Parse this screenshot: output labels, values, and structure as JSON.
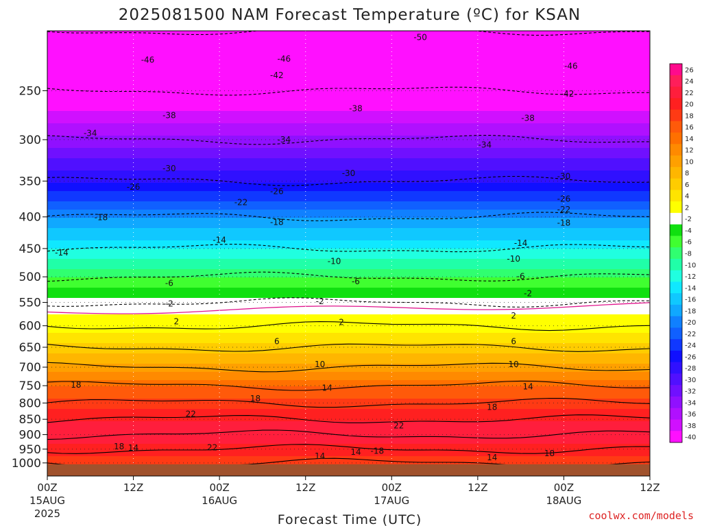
{
  "page": {
    "title": "2025081500 NAM Forecast Temperature (ºC) for KSAN",
    "xlabel": "Forecast Time (UTC)",
    "credit": "coolwx.com/models"
  },
  "chart_data": {
    "type": "heatmap",
    "title": "2025081500 NAM Forecast Temperature (ºC) for KSAN",
    "xlabel": "Forecast Time (UTC)",
    "ylabel": "",
    "y_scale": "log",
    "y_inverted": true,
    "ylim": [
      1050,
      200
    ],
    "xlim_hours": [
      0,
      84
    ],
    "y_ticks": [
      250,
      300,
      350,
      400,
      450,
      500,
      550,
      600,
      650,
      700,
      750,
      800,
      850,
      900,
      950,
      1000
    ],
    "x_ticks": [
      {
        "hour": 0,
        "label": "00Z",
        "date": "15AUG",
        "year": "2025"
      },
      {
        "hour": 12,
        "label": "12Z",
        "date": "",
        "year": ""
      },
      {
        "hour": 24,
        "label": "00Z",
        "date": "16AUG",
        "year": ""
      },
      {
        "hour": 36,
        "label": "12Z",
        "date": "",
        "year": ""
      },
      {
        "hour": 48,
        "label": "00Z",
        "date": "17AUG",
        "year": ""
      },
      {
        "hour": 60,
        "label": "12Z",
        "date": "",
        "year": ""
      },
      {
        "hour": 72,
        "label": "00Z",
        "date": "18AUG",
        "year": ""
      },
      {
        "hour": 84,
        "label": "12Z",
        "date": "",
        "year": ""
      }
    ],
    "colorbar_levels": [
      26,
      24,
      22,
      20,
      18,
      16,
      14,
      12,
      10,
      8,
      6,
      4,
      2,
      -2,
      -4,
      -6,
      -8,
      -10,
      -12,
      -14,
      -16,
      -18,
      -20,
      -22,
      -24,
      -26,
      -28,
      -30,
      -32,
      -34,
      -36,
      -38,
      -40
    ],
    "colorbar_colors": [
      "#ff0a8c",
      "#ff1e5a",
      "#ff1e3c",
      "#ff2020",
      "#ff3a14",
      "#ff5a0a",
      "#ff7000",
      "#ff8a00",
      "#ffa000",
      "#ffb600",
      "#ffcc00",
      "#ffe400",
      "#ffff00",
      "#ffffff",
      "#10e010",
      "#40ff30",
      "#30ff70",
      "#20ffa8",
      "#20ffe0",
      "#10e8ff",
      "#10c8ff",
      "#10a8ff",
      "#1080ff",
      "#1060ff",
      "#1038ff",
      "#1010ff",
      "#3010ff",
      "#5010ff",
      "#7010ff",
      "#9010ff",
      "#b010ff",
      "#d010ff",
      "#ff10ff"
    ],
    "temperature_profile": {
      "pressure_hPa": [
        1000,
        950,
        900,
        850,
        800,
        750,
        700,
        650,
        600,
        550,
        500,
        450,
        400,
        350,
        300,
        250,
        200
      ],
      "temperature_C": [
        18,
        20,
        22,
        21,
        18,
        15,
        10,
        6,
        2,
        -2,
        -7,
        -13,
        -19,
        -27,
        -34,
        -42,
        -49
      ]
    },
    "contour_labels": [
      {
        "value": "-46",
        "hour": 14,
        "p": 223
      },
      {
        "value": "-46",
        "hour": 33,
        "p": 222
      },
      {
        "value": "-50",
        "hour": 52,
        "p": 205
      },
      {
        "value": "-46",
        "hour": 73,
        "p": 228
      },
      {
        "value": "-42",
        "hour": 32,
        "p": 236
      },
      {
        "value": "-42",
        "hour": 72.5,
        "p": 253
      },
      {
        "value": "-38",
        "hour": 17,
        "p": 274
      },
      {
        "value": "-38",
        "hour": 43,
        "p": 267
      },
      {
        "value": "-38",
        "hour": 67,
        "p": 277
      },
      {
        "value": "-34",
        "hour": 6,
        "p": 293
      },
      {
        "value": "-34",
        "hour": 33,
        "p": 300
      },
      {
        "value": "-34",
        "hour": 61,
        "p": 306
      },
      {
        "value": "-30",
        "hour": 17,
        "p": 334
      },
      {
        "value": "-30",
        "hour": 42,
        "p": 340
      },
      {
        "value": "-30",
        "hour": 72,
        "p": 344
      },
      {
        "value": "-26",
        "hour": 12,
        "p": 358
      },
      {
        "value": "-26",
        "hour": 32,
        "p": 364
      },
      {
        "value": "-26",
        "hour": 72,
        "p": 374
      },
      {
        "value": "-22",
        "hour": 27,
        "p": 379
      },
      {
        "value": "-22",
        "hour": 72,
        "p": 389
      },
      {
        "value": "-18",
        "hour": 7.5,
        "p": 401
      },
      {
        "value": "-18",
        "hour": 32,
        "p": 408
      },
      {
        "value": "-18",
        "hour": 72,
        "p": 409
      },
      {
        "value": "-14",
        "hour": 2,
        "p": 457
      },
      {
        "value": "-14",
        "hour": 24,
        "p": 436
      },
      {
        "value": "-14",
        "hour": 66,
        "p": 441
      },
      {
        "value": "-10",
        "hour": 40,
        "p": 472
      },
      {
        "value": "-10",
        "hour": 65,
        "p": 468
      },
      {
        "value": "-6",
        "hour": 17,
        "p": 512
      },
      {
        "value": "-6",
        "hour": 43,
        "p": 509
      },
      {
        "value": "-6",
        "hour": 66,
        "p": 499
      },
      {
        "value": "-2",
        "hour": 17,
        "p": 553
      },
      {
        "value": "-2",
        "hour": 38,
        "p": 548
      },
      {
        "value": "-2",
        "hour": 67,
        "p": 532
      },
      {
        "value": "2",
        "hour": 18,
        "p": 591
      },
      {
        "value": "2",
        "hour": 41,
        "p": 592
      },
      {
        "value": "2",
        "hour": 65,
        "p": 578
      },
      {
        "value": "6",
        "hour": 32,
        "p": 636
      },
      {
        "value": "6",
        "hour": 65,
        "p": 636
      },
      {
        "value": "10",
        "hour": 38,
        "p": 693
      },
      {
        "value": "10",
        "hour": 65,
        "p": 693
      },
      {
        "value": "14",
        "hour": 39,
        "p": 757
      },
      {
        "value": "14",
        "hour": 67,
        "p": 753
      },
      {
        "value": "18",
        "hour": 4,
        "p": 748
      },
      {
        "value": "18",
        "hour": 29,
        "p": 787
      },
      {
        "value": "18",
        "hour": 62,
        "p": 813
      },
      {
        "value": "22",
        "hour": 20,
        "p": 834
      },
      {
        "value": "22",
        "hour": 49,
        "p": 870
      },
      {
        "value": "22",
        "hour": 23,
        "p": 944
      },
      {
        "value": "18",
        "hour": 10,
        "p": 941
      },
      {
        "value": "14",
        "hour": 12,
        "p": 946
      },
      {
        "value": "14",
        "hour": 38,
        "p": 975
      },
      {
        "value": "14",
        "hour": 43,
        "p": 960
      },
      {
        "value": "-18",
        "hour": 46,
        "p": 957
      },
      {
        "value": "14",
        "hour": 62,
        "p": 980
      },
      {
        "value": "18",
        "hour": 70,
        "p": 965
      }
    ],
    "grid": true,
    "legend": "colorbar-right"
  }
}
